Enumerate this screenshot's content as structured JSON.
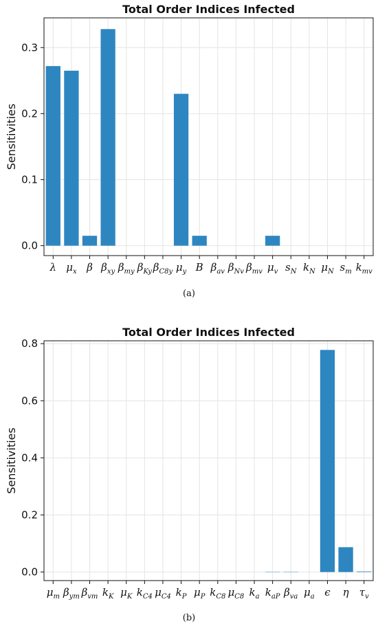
{
  "chart_data": [
    {
      "type": "bar",
      "title": "Total Order Indices Infected",
      "ylabel": "Sensitivities",
      "xlabel": "",
      "ylim": [
        -0.015,
        0.345
      ],
      "yticks": [
        "0.0",
        "0.1",
        "0.2",
        "0.3"
      ],
      "ytick_values": [
        0,
        0.1,
        0.2,
        0.3
      ],
      "grid": true,
      "bar_color": "#2e86c1",
      "categories": [
        {
          "base": "λ",
          "sub": ""
        },
        {
          "base": "μ",
          "sub": "x"
        },
        {
          "base": "β",
          "sub": ""
        },
        {
          "base": "β",
          "sub": "xy"
        },
        {
          "base": "β",
          "sub": "my"
        },
        {
          "base": "β",
          "sub": "Ky"
        },
        {
          "base": "β",
          "sub": "C8y"
        },
        {
          "base": "μ",
          "sub": "y"
        },
        {
          "base": "B",
          "sub": ""
        },
        {
          "base": "β",
          "sub": "av"
        },
        {
          "base": "β",
          "sub": "Nv"
        },
        {
          "base": "β",
          "sub": "mv"
        },
        {
          "base": "μ",
          "sub": "v"
        },
        {
          "base": "s",
          "sub": "N"
        },
        {
          "base": "k",
          "sub": "N"
        },
        {
          "base": "μ",
          "sub": "N"
        },
        {
          "base": "s",
          "sub": "m"
        },
        {
          "base": "k",
          "sub": "mv"
        }
      ],
      "values": [
        0.272,
        0.265,
        0.015,
        0.328,
        0,
        0,
        0,
        0.23,
        0.015,
        0,
        0,
        0,
        0.015,
        0,
        0,
        0,
        0,
        0
      ],
      "caption": "(a)"
    },
    {
      "type": "bar",
      "title": "Total Order Indices Infected",
      "ylabel": "Sensitivities",
      "xlabel": "",
      "ylim": [
        -0.03,
        0.81
      ],
      "yticks": [
        "0.0",
        "0.2",
        "0.4",
        "0.6",
        "0.8"
      ],
      "ytick_values": [
        0,
        0.2,
        0.4,
        0.6,
        0.8
      ],
      "grid": true,
      "bar_color": "#2e86c1",
      "categories": [
        {
          "base": "μ",
          "sub": "m"
        },
        {
          "base": "β",
          "sub": "ym"
        },
        {
          "base": "β",
          "sub": "vm"
        },
        {
          "base": "k",
          "sub": "K"
        },
        {
          "base": "μ",
          "sub": "K"
        },
        {
          "base": "k",
          "sub": "C4"
        },
        {
          "base": "μ",
          "sub": "C4"
        },
        {
          "base": "k",
          "sub": "P"
        },
        {
          "base": "μ",
          "sub": "P"
        },
        {
          "base": "k",
          "sub": "C8"
        },
        {
          "base": "μ",
          "sub": "C8"
        },
        {
          "base": "k",
          "sub": "a"
        },
        {
          "base": "k",
          "sub": "aP"
        },
        {
          "base": "β",
          "sub": "va"
        },
        {
          "base": "μ",
          "sub": "a"
        },
        {
          "base": "ϵ",
          "sub": ""
        },
        {
          "base": "η",
          "sub": ""
        },
        {
          "base": "τ",
          "sub": "v"
        }
      ],
      "values": [
        0,
        0,
        0,
        0,
        0,
        0,
        0,
        0,
        0,
        0,
        0,
        0,
        0.001,
        0.001,
        0,
        0.778,
        0.087,
        0.002
      ],
      "caption": "(b)"
    }
  ]
}
